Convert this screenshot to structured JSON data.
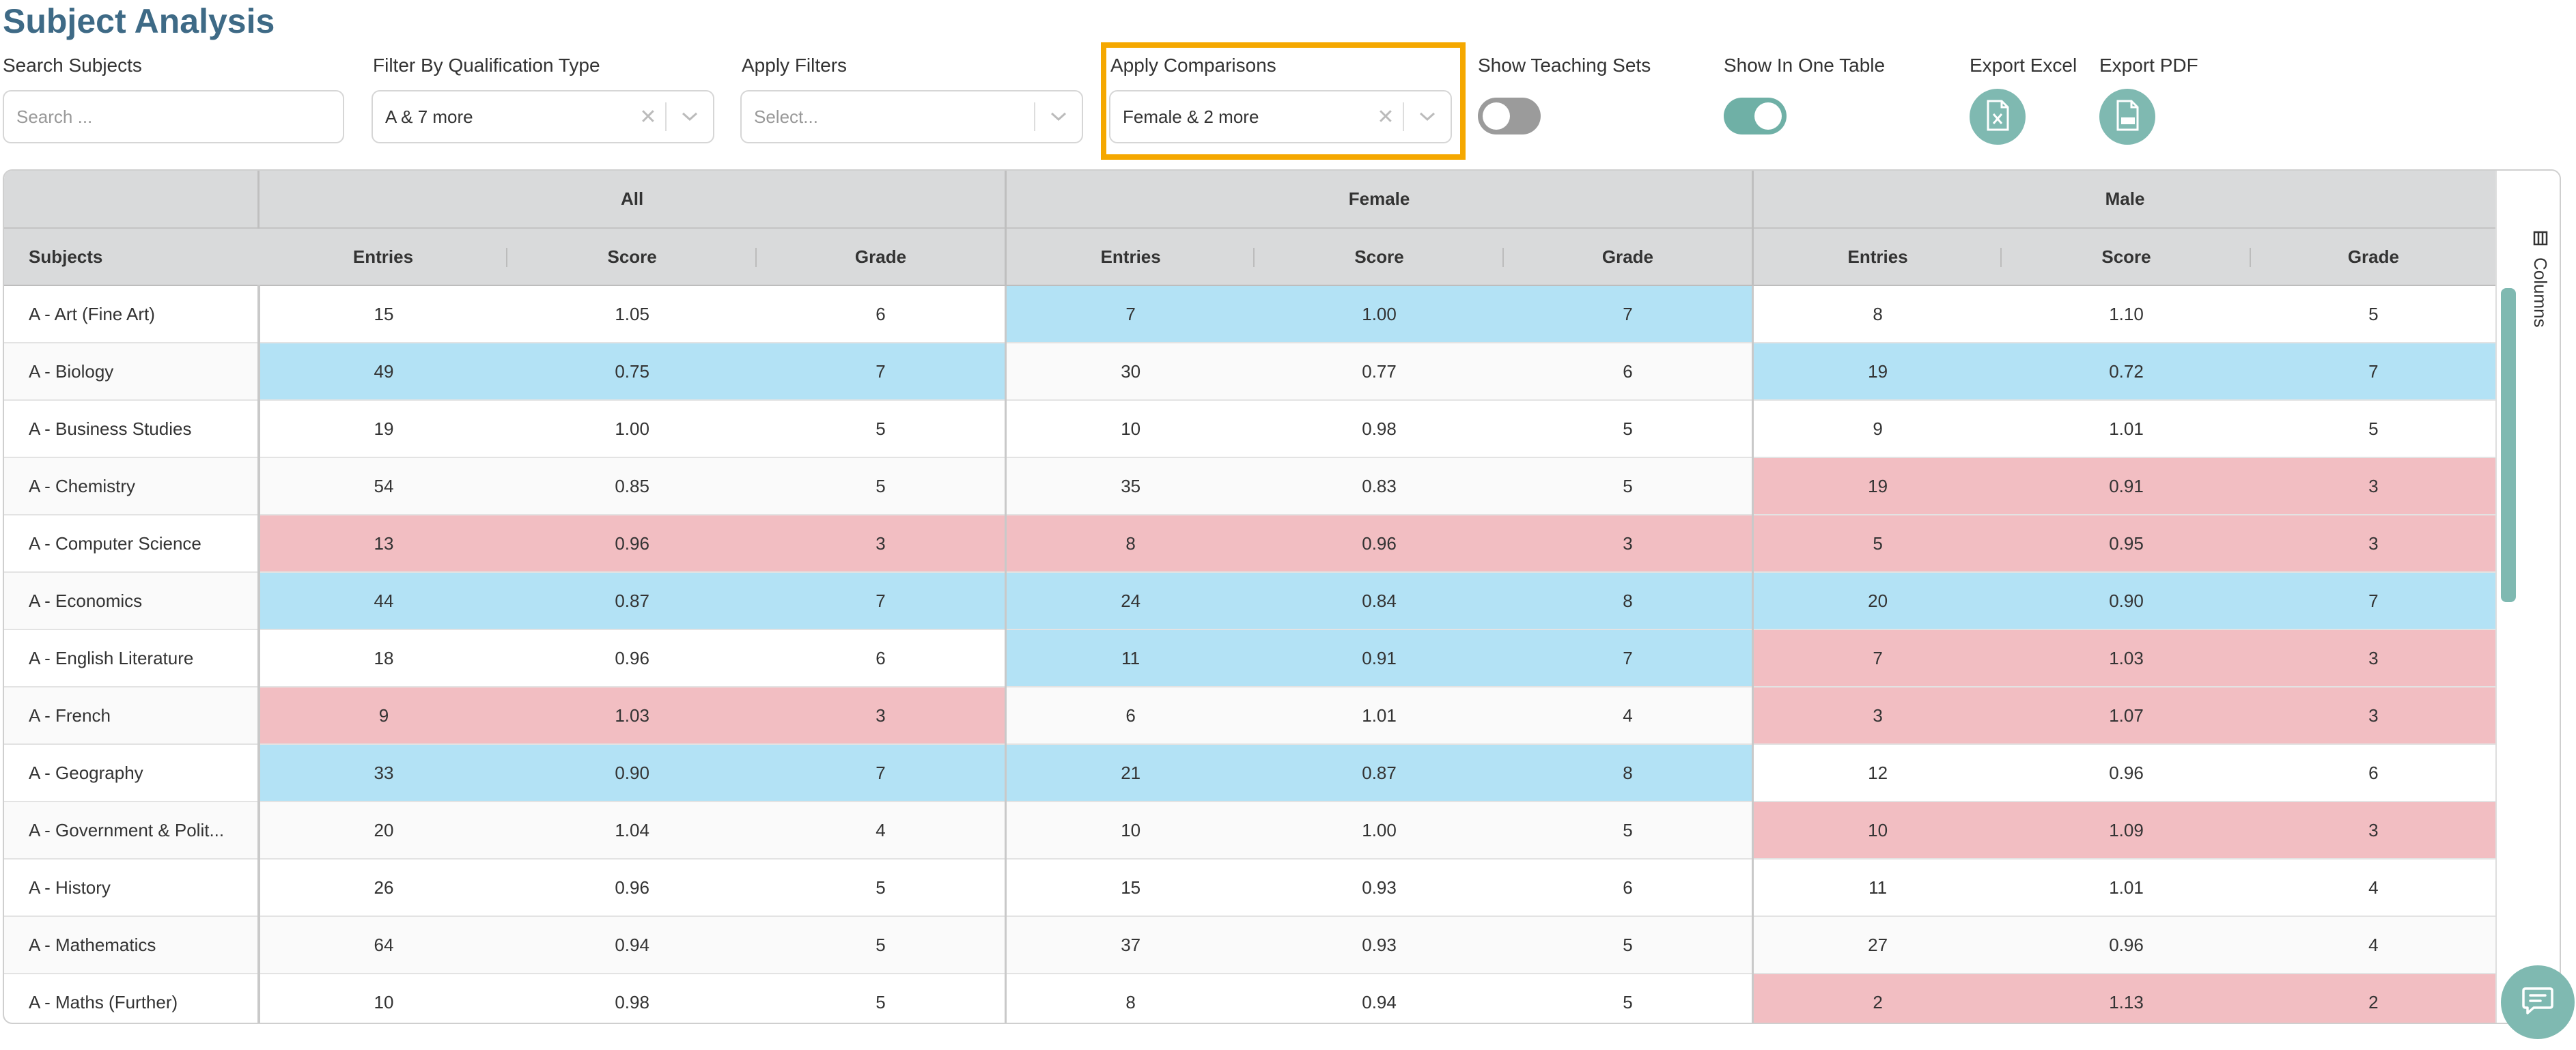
{
  "page": {
    "title": "Subject Analysis"
  },
  "controls": {
    "search": {
      "label": "Search Subjects",
      "placeholder": "Search ..."
    },
    "qualification": {
      "label": "Filter By Qualification Type",
      "value": "A & 7 more"
    },
    "filters": {
      "label": "Apply Filters",
      "placeholder": "Select..."
    },
    "comparisons": {
      "label": "Apply Comparisons",
      "value": "Female & 2 more"
    },
    "teaching_sets": {
      "label": "Show Teaching Sets",
      "on": false
    },
    "one_table": {
      "label": "Show In One Table",
      "on": true
    },
    "export_excel": {
      "label": "Export Excel"
    },
    "export_pdf": {
      "label": "Export PDF"
    }
  },
  "table": {
    "groups": [
      "All",
      "Female",
      "Male"
    ],
    "columns": [
      "Subjects",
      "Entries",
      "Score",
      "Grade",
      "Entries",
      "Score",
      "Grade",
      "Entries",
      "Score",
      "Grade"
    ],
    "rows": [
      {
        "cells": [
          "A - Art (Fine Art)",
          "15",
          "1.05",
          "6",
          "7",
          "1.00",
          "7",
          "8",
          "1.10",
          "5"
        ],
        "hl": [
          "",
          "",
          "",
          "high",
          "",
          "",
          ""
        ]
      },
      {
        "cells": [
          "A - Biology",
          "49",
          "0.75",
          "7",
          "30",
          "0.77",
          "6",
          "19",
          "0.72",
          "7"
        ],
        "hl": [
          "high",
          "",
          "",
          "",
          "",
          "",
          "high"
        ]
      },
      {
        "cells": [
          "A - Business Studies",
          "19",
          "1.00",
          "5",
          "10",
          "0.98",
          "5",
          "9",
          "1.01",
          "5"
        ],
        "hl": [
          "",
          "",
          "",
          "",
          "",
          "",
          ""
        ]
      },
      {
        "cells": [
          "A - Chemistry",
          "54",
          "0.85",
          "5",
          "35",
          "0.83",
          "5",
          "19",
          "0.91",
          "3"
        ],
        "hl": [
          "",
          "",
          "",
          "",
          "",
          "",
          "low"
        ]
      },
      {
        "cells": [
          "A - Computer Science",
          "13",
          "0.96",
          "3",
          "8",
          "0.96",
          "3",
          "5",
          "0.95",
          "3"
        ],
        "hl": [
          "low",
          "",
          "",
          "low",
          "",
          "",
          "low"
        ]
      },
      {
        "cells": [
          "A - Economics",
          "44",
          "0.87",
          "7",
          "24",
          "0.84",
          "8",
          "20",
          "0.90",
          "7"
        ],
        "hl": [
          "high",
          "",
          "",
          "high",
          "",
          "",
          "high"
        ]
      },
      {
        "cells": [
          "A - English Literature",
          "18",
          "0.96",
          "6",
          "11",
          "0.91",
          "7",
          "7",
          "1.03",
          "3"
        ],
        "hl": [
          "",
          "",
          "",
          "high",
          "",
          "",
          "low"
        ]
      },
      {
        "cells": [
          "A - French",
          "9",
          "1.03",
          "3",
          "6",
          "1.01",
          "4",
          "3",
          "1.07",
          "3"
        ],
        "hl": [
          "low",
          "",
          "",
          "",
          "",
          "",
          "low"
        ]
      },
      {
        "cells": [
          "A - Geography",
          "33",
          "0.90",
          "7",
          "21",
          "0.87",
          "8",
          "12",
          "0.96",
          "6"
        ],
        "hl": [
          "high",
          "",
          "",
          "high",
          "",
          "",
          ""
        ]
      },
      {
        "cells": [
          "A - Government & Polit...",
          "20",
          "1.04",
          "4",
          "10",
          "1.00",
          "5",
          "10",
          "1.09",
          "3"
        ],
        "hl": [
          "",
          "",
          "",
          "",
          "",
          "",
          "low"
        ]
      },
      {
        "cells": [
          "A - History",
          "26",
          "0.96",
          "5",
          "15",
          "0.93",
          "6",
          "11",
          "1.01",
          "4"
        ],
        "hl": [
          "",
          "",
          "",
          "",
          "",
          "",
          ""
        ]
      },
      {
        "cells": [
          "A - Mathematics",
          "64",
          "0.94",
          "5",
          "37",
          "0.93",
          "5",
          "27",
          "0.96",
          "4"
        ],
        "hl": [
          "",
          "",
          "",
          "",
          "",
          "",
          ""
        ]
      },
      {
        "cells": [
          "A - Maths (Further)",
          "10",
          "0.98",
          "5",
          "8",
          "0.94",
          "5",
          "2",
          "1.13",
          "2"
        ],
        "hl": [
          "",
          "",
          "",
          "",
          "",
          "",
          "low"
        ]
      }
    ]
  },
  "side_panel": {
    "columns_label": "Columns"
  },
  "icons": {
    "clear": "close-icon",
    "chevron": "chevron-down-icon",
    "excel": "excel-file-icon",
    "pdf": "pdf-file-icon",
    "columns": "columns-icon",
    "chat": "chat-icon"
  },
  "colors": {
    "title": "#3e6a86",
    "accent": "#7fb9b1",
    "highlight_box": "#f5a800",
    "above_average": "#b3e2f5",
    "below_average": "#f2bec2"
  }
}
